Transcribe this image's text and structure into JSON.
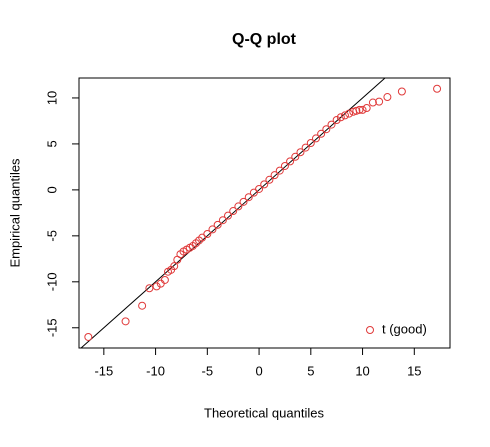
{
  "chart_data": {
    "type": "scatter",
    "title": "Q-Q plot",
    "x_label": "Theoretical quantiles",
    "y_label": "Empirical quantiles",
    "xlim": [
      -17.4,
      18.45
    ],
    "ylim": [
      -17.2,
      12.17
    ],
    "xticks": [
      -15,
      -10,
      -5,
      0,
      5,
      10,
      15
    ],
    "yticks": [
      -15,
      -10,
      -5,
      0,
      5,
      10
    ],
    "reference_line": {
      "slope": 1,
      "intercept": 0
    },
    "legend": "bottomright",
    "series": [
      {
        "name": "t (good)",
        "color": "#e03a3a",
        "x": [
          -16.5,
          -12.9,
          -11.3,
          -10.6,
          -9.9,
          -9.5,
          -9.1,
          -8.8,
          -8.5,
          -8.2,
          -7.9,
          -7.6,
          -7.3,
          -7.0,
          -6.7,
          -6.4,
          -6.1,
          -5.8,
          -5.5,
          -5.0,
          -4.5,
          -4.0,
          -3.5,
          -3.0,
          -2.5,
          -2.0,
          -1.5,
          -1.0,
          -0.5,
          0.0,
          0.5,
          1.0,
          1.5,
          2.0,
          2.5,
          3.0,
          3.5,
          4.0,
          4.5,
          5.0,
          5.5,
          6.0,
          6.5,
          7.0,
          7.5,
          7.9,
          8.3,
          8.7,
          9.1,
          9.4,
          9.7,
          10.0,
          10.4,
          11.0,
          11.6,
          12.4,
          13.8,
          17.2
        ],
        "y": [
          -16.0,
          -14.3,
          -12.6,
          -10.7,
          -10.5,
          -10.2,
          -9.8,
          -8.9,
          -8.7,
          -8.3,
          -7.6,
          -7.0,
          -6.7,
          -6.5,
          -6.3,
          -6.1,
          -5.8,
          -5.5,
          -5.2,
          -4.8,
          -4.3,
          -3.8,
          -3.3,
          -2.8,
          -2.3,
          -1.8,
          -1.3,
          -0.8,
          -0.3,
          0.1,
          0.6,
          1.1,
          1.6,
          2.1,
          2.6,
          3.1,
          3.6,
          4.1,
          4.6,
          5.1,
          5.6,
          6.1,
          6.6,
          7.1,
          7.6,
          7.9,
          8.1,
          8.3,
          8.5,
          8.6,
          8.7,
          8.7,
          8.9,
          9.5,
          9.6,
          10.1,
          10.7,
          11.0
        ]
      }
    ]
  }
}
